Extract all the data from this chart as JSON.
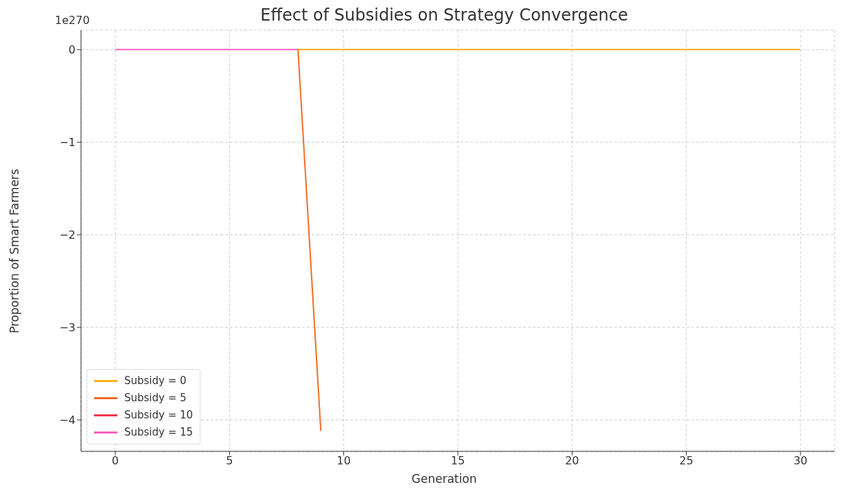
{
  "chart_data": {
    "type": "line",
    "title": "Effect of Subsidies on Strategy Convergence",
    "xlabel": "Generation",
    "ylabel": "Proportion of Smart Farmers",
    "annotations": [
      "1e270"
    ],
    "series": [
      {
        "name": "Subsidy = 0",
        "color": "#fbb117",
        "x": [
          8,
          9,
          10,
          11,
          12,
          13,
          14,
          15,
          16,
          17,
          18,
          19,
          20,
          21,
          22,
          23,
          24,
          25,
          26,
          27,
          28,
          29,
          30
        ],
        "values": [
          0,
          0,
          0,
          0,
          0,
          0,
          0,
          0,
          0,
          0,
          0,
          0,
          0,
          0,
          0,
          0,
          0,
          0,
          0,
          0,
          0,
          0,
          0
        ]
      },
      {
        "name": "Subsidy = 5",
        "color": "#f36c25",
        "x": [
          8,
          9
        ],
        "values": [
          0,
          -4.12
        ]
      },
      {
        "name": "Subsidy = 10",
        "color": "#f2344f"
      },
      {
        "name": "Subsidy = 15",
        "color": "#f660c0",
        "x": [
          0,
          1,
          2,
          3,
          4,
          5,
          6,
          7,
          8
        ],
        "values": [
          0,
          0,
          0,
          0,
          0,
          0,
          0,
          0,
          0
        ]
      }
    ],
    "xlim": [
      -1.5,
      31.5
    ],
    "xticks": [
      0,
      5,
      10,
      15,
      20,
      25,
      30
    ],
    "ylim": [
      -4.34,
      0.21
    ],
    "yticks": [
      -4,
      -3,
      -2,
      -1,
      0
    ],
    "grid": true,
    "legend": "bottom left",
    "line_style": "solid",
    "marker": "none"
  }
}
